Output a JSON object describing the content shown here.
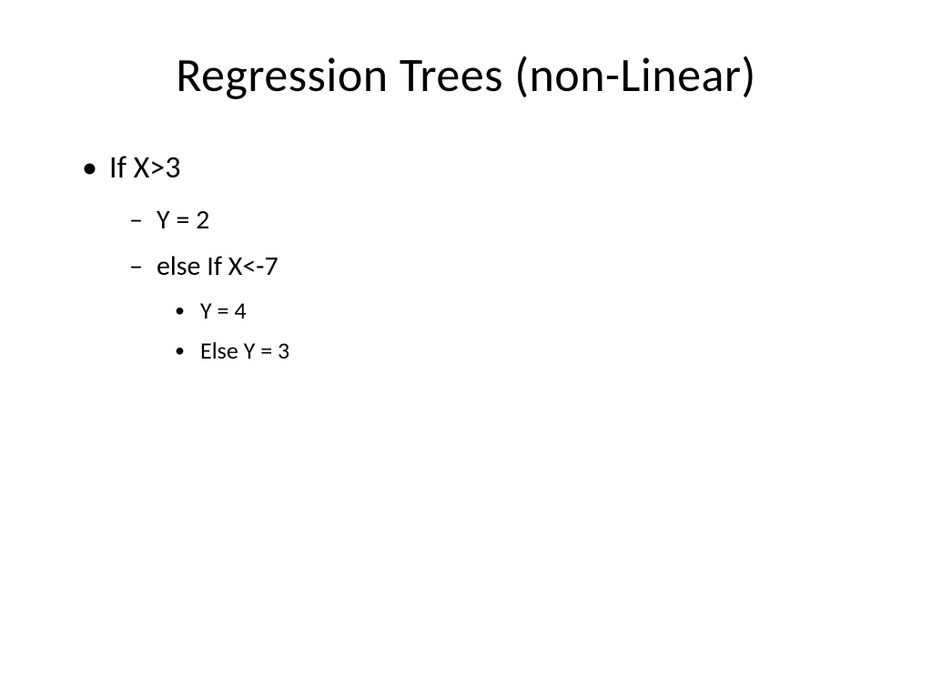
{
  "slide": {
    "title": "Regression Trees (non-Linear)",
    "bullets": {
      "level1_item1": "If X>3",
      "level2_item1": "Y = 2",
      "level2_item2": "else If X<-7",
      "level3_item1": "Y = 4",
      "level3_item2": "Else Y = 3"
    },
    "styling": {
      "background_color": "#ffffff",
      "text_color": "#000000",
      "title_fontsize": 52,
      "level1_fontsize": 34,
      "level2_fontsize": 30,
      "level3_fontsize": 26,
      "font_family": "Calibri"
    }
  }
}
